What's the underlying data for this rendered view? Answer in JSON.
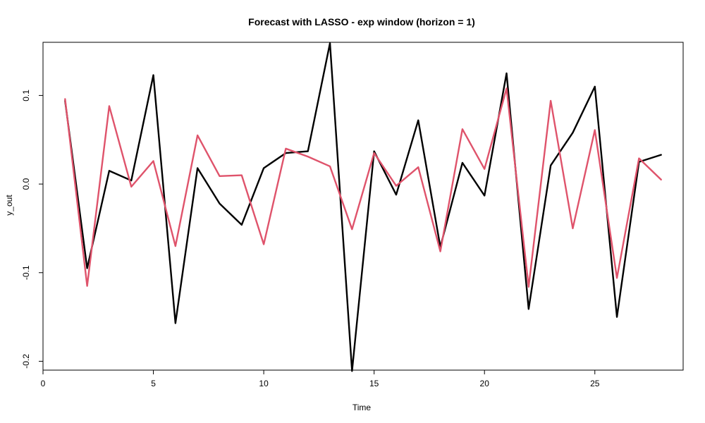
{
  "chart_data": {
    "type": "line",
    "title": "Forecast with LASSO - exp window (horizon = 1)",
    "xlabel": "Time",
    "ylabel": "y_out",
    "xlim": [
      0,
      29
    ],
    "ylim": [
      -0.21,
      0.16
    ],
    "xticks": [
      0,
      5,
      10,
      15,
      20,
      25
    ],
    "yticks": [
      -0.2,
      -0.1,
      0.0,
      0.1
    ],
    "xtick_labels": [
      "0",
      "5",
      "10",
      "15",
      "20",
      "25"
    ],
    "ytick_labels": [
      "-0.2",
      "-0.1",
      "0.0",
      "0.1"
    ],
    "grid": false,
    "x": [
      1,
      2,
      3,
      4,
      5,
      6,
      7,
      8,
      9,
      10,
      11,
      12,
      13,
      14,
      15,
      16,
      17,
      18,
      19,
      20,
      21,
      22,
      23,
      24,
      25,
      26,
      27,
      28
    ],
    "series": [
      {
        "color": "#000000",
        "values": [
          0.094,
          -0.095,
          0.015,
          0.004,
          0.123,
          -0.157,
          0.018,
          -0.022,
          -0.046,
          0.018,
          0.035,
          0.037,
          0.159,
          -0.211,
          0.037,
          -0.012,
          0.072,
          -0.071,
          0.024,
          -0.013,
          0.125,
          -0.141,
          0.021,
          0.058,
          0.11,
          -0.15,
          0.025,
          0.033
        ]
      },
      {
        "color": "#DF536B",
        "values": [
          0.096,
          -0.115,
          0.088,
          -0.003,
          0.026,
          -0.07,
          0.055,
          0.009,
          0.01,
          -0.068,
          0.04,
          0.031,
          0.02,
          -0.051,
          0.035,
          -0.002,
          0.019,
          -0.076,
          0.062,
          0.017,
          0.108,
          -0.116,
          0.094,
          -0.05,
          0.061,
          -0.106,
          0.029,
          0.005
        ]
      }
    ]
  }
}
